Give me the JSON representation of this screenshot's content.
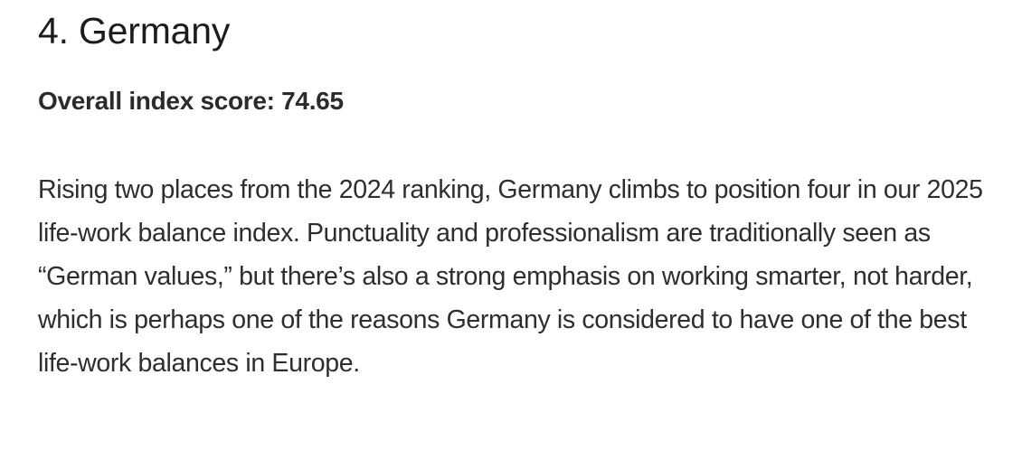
{
  "section": {
    "heading": "4. Germany",
    "score_line": "Overall index score: 74.65",
    "paragraph": "Rising two places from the 2024 ranking, Germany climbs to position four in our 2025 life-work balance index. Punctuality and professionalism are traditionally seen as “German values,” but there’s also a strong emphasis on working smarter, not harder, which is perhaps one of the reasons Germany is considered to have one of the best life-work balances in Europe."
  }
}
